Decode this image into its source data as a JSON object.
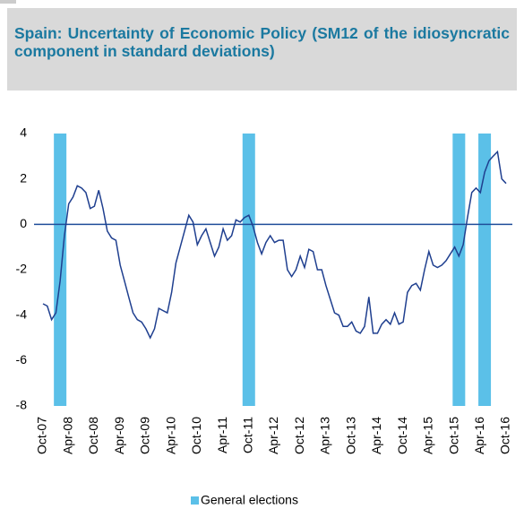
{
  "chart_data": {
    "type": "line",
    "title": "Spain: Uncertainty of Economic Policy (SM12 of the idiosyncratic component in standard deviations)",
    "categories": [
      "Oct-07",
      null,
      null,
      null,
      null,
      null,
      "Apr-08",
      null,
      null,
      null,
      null,
      null,
      "Oct-08",
      null,
      null,
      null,
      null,
      null,
      "Apr-09",
      null,
      null,
      null,
      null,
      null,
      "Oct-09",
      null,
      null,
      null,
      null,
      null,
      "Apr-10",
      null,
      null,
      null,
      null,
      null,
      "Oct-10",
      null,
      null,
      null,
      null,
      null,
      "Apr-11",
      null,
      null,
      null,
      null,
      null,
      "Oct-11",
      null,
      null,
      null,
      null,
      null,
      "Apr-12",
      null,
      null,
      null,
      null,
      null,
      "Oct-12",
      null,
      null,
      null,
      null,
      null,
      "Apr-13",
      null,
      null,
      null,
      null,
      null,
      "Oct-13",
      null,
      null,
      null,
      null,
      null,
      "Apr-14",
      null,
      null,
      null,
      null,
      null,
      "Oct-14",
      null,
      null,
      null,
      null,
      null,
      "Apr-15",
      null,
      null,
      null,
      null,
      null,
      "Oct-15",
      null,
      null,
      null,
      null,
      null,
      "Apr-16",
      null,
      null,
      null,
      null,
      null,
      "Oct-16"
    ],
    "series": [
      {
        "name": "Uncertainty",
        "color": "#1f3f8f",
        "values": [
          -3.5,
          -3.6,
          -4.2,
          -3.9,
          -2.5,
          -0.5,
          0.9,
          1.2,
          1.7,
          1.6,
          1.4,
          0.7,
          0.8,
          1.5,
          0.7,
          -0.3,
          -0.6,
          -0.7,
          -1.8,
          -2.5,
          -3.2,
          -3.9,
          -4.2,
          -4.3,
          -4.6,
          -5.0,
          -4.6,
          -3.7,
          -3.8,
          -3.9,
          -3.0,
          -1.7,
          -1.0,
          -0.3,
          0.4,
          0.1,
          -0.9,
          -0.5,
          -0.2,
          -0.8,
          -1.4,
          -1.0,
          -0.2,
          -0.7,
          -0.5,
          0.2,
          0.1,
          0.3,
          0.4,
          -0.1,
          -0.8,
          -1.3,
          -0.8,
          -0.5,
          -0.8,
          -0.7,
          -0.7,
          -2.0,
          -2.3,
          -2.0,
          -1.4,
          -1.9,
          -1.1,
          -1.2,
          -2.0,
          -2.0,
          -2.7,
          -3.3,
          -3.9,
          -4.0,
          -4.5,
          -4.5,
          -4.3,
          -4.7,
          -4.8,
          -4.5,
          -3.2,
          -4.8,
          -4.8,
          -4.4,
          -4.2,
          -4.4,
          -3.9,
          -4.4,
          -4.3,
          -3.0,
          -2.7,
          -2.6,
          -2.9,
          -2.0,
          -1.2,
          -1.8,
          -1.9,
          -1.8,
          -1.6,
          -1.3,
          -1.0,
          -1.4,
          -0.9,
          0.3,
          1.4,
          1.6,
          1.4,
          2.3,
          2.8,
          3.0,
          3.2,
          2.0,
          1.8
        ]
      },
      {
        "name": "General elections",
        "type": "bar",
        "color": "#5bc0e8",
        "values": [
          null,
          null,
          null,
          null,
          4,
          null,
          null,
          null,
          null,
          null,
          null,
          null,
          null,
          null,
          null,
          null,
          null,
          null,
          null,
          null,
          null,
          null,
          null,
          null,
          null,
          null,
          null,
          null,
          null,
          null,
          null,
          null,
          null,
          null,
          null,
          null,
          null,
          null,
          null,
          null,
          null,
          null,
          null,
          null,
          null,
          null,
          null,
          null,
          4,
          null,
          null,
          null,
          null,
          null,
          null,
          null,
          null,
          null,
          null,
          null,
          null,
          null,
          null,
          null,
          null,
          null,
          null,
          null,
          null,
          null,
          null,
          null,
          null,
          null,
          null,
          null,
          null,
          null,
          null,
          null,
          null,
          null,
          null,
          null,
          null,
          null,
          null,
          null,
          null,
          null,
          null,
          null,
          null,
          null,
          null,
          null,
          null,
          4,
          null,
          null,
          null,
          null,
          null,
          4,
          null,
          null,
          null,
          null,
          null
        ]
      }
    ],
    "ylim": [
      -8,
      4
    ],
    "yticks": [
      -8,
      -6,
      -4,
      -2,
      0,
      2,
      4
    ],
    "legend": "bottom"
  }
}
